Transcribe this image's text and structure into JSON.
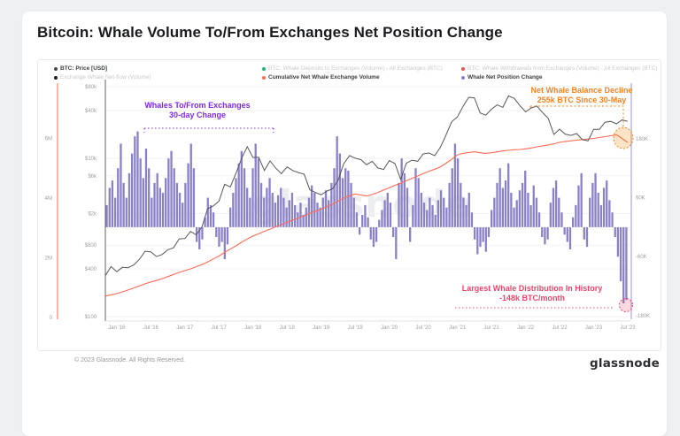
{
  "title": "Bitcoin: Whale Volume To/From Exchanges Net Position Change",
  "watermark": "glassnode",
  "footer": {
    "copyright": "© 2023 Glassnode. All Rights Reserved.",
    "logo": "glassnode"
  },
  "legend": {
    "items": [
      {
        "label": "BTC: Price [USD]",
        "color": "#46484d",
        "active": true
      },
      {
        "label": "Exchange Whale Net-flow (Volume)",
        "color": "#1f2226",
        "active": false
      },
      {
        "label": "BTC: Whale Deposits to Exchanges (Volume) - All Exchanges (BTC)",
        "color": "#1fb56f",
        "active": false
      },
      {
        "label": "Cumulative Net Whale Exchange Volume",
        "color": "#ff6a55",
        "active": true
      },
      {
        "label": "BTC: Whale Withdrawals from Exchanges (Volume) - All Exchanges (BTC)",
        "color": "#e25552",
        "active": false
      },
      {
        "label": "Whale Net Position Change",
        "color": "#8a82c6",
        "active": true
      }
    ]
  },
  "annotations": {
    "whales_change": {
      "line1": "Whales To/From Exchanges",
      "line2": "30-day Change",
      "color": "#7d2ae8"
    },
    "balance_decline": {
      "line1": "Net Whale Balance Decline",
      "line2": "255k BTC Since 30-May",
      "color": "#f6821f"
    },
    "largest_distribution": {
      "line1": "Largest Whale Distribution In History",
      "line2": "-148k BTC/month",
      "color": "#e8476b"
    }
  },
  "chart_data": {
    "type": "combo",
    "title": "Bitcoin: Whale Volume To/From Exchanges Net Position Change",
    "grid": "horizontal-faint",
    "legend_position": "top",
    "x_axis": {
      "start": "2015-11",
      "end": "2023-07",
      "ticks": [
        {
          "label": "Jan '16",
          "m": 2
        },
        {
          "label": "Jul '16",
          "m": 8
        },
        {
          "label": "Jan '17",
          "m": 14
        },
        {
          "label": "Jul '17",
          "m": 20
        },
        {
          "label": "Jan '18",
          "m": 26
        },
        {
          "label": "Jul '18",
          "m": 32
        },
        {
          "label": "Jan '19",
          "m": 38
        },
        {
          "label": "Jul '19",
          "m": 44
        },
        {
          "label": "Jan '20",
          "m": 50
        },
        {
          "label": "Jul '20",
          "m": 56
        },
        {
          "label": "Jan '21",
          "m": 62
        },
        {
          "label": "Jul '21",
          "m": 68
        },
        {
          "label": "Jan '22",
          "m": 74
        },
        {
          "label": "Jul '22",
          "m": 80
        },
        {
          "label": "Jan '23",
          "m": 86
        },
        {
          "label": "Jul '23",
          "m": 92
        }
      ]
    },
    "axes": {
      "price_log_usd": {
        "side": "inner-left",
        "scale": "log",
        "range": [
          100,
          80000
        ],
        "ticks": [
          {
            "label": "$80k",
            "value": 80000
          },
          {
            "label": "$40k",
            "value": 40000
          },
          {
            "label": "$10k",
            "value": 10000
          },
          {
            "label": "$6k",
            "value": 6000
          },
          {
            "label": "$2k",
            "value": 2000
          },
          {
            "label": "$800",
            "value": 800
          },
          {
            "label": "$400",
            "value": 400
          },
          {
            "label": "$100",
            "value": 100
          }
        ]
      },
      "volume_m": {
        "side": "outer-left",
        "scale": "linear",
        "range": [
          0,
          7.8
        ],
        "unit": "M BTC",
        "ticks": [
          {
            "label": "6M",
            "value": 6
          },
          {
            "label": "4M",
            "value": 4
          },
          {
            "label": "2M",
            "value": 2
          },
          {
            "label": "0",
            "value": 0
          }
        ]
      },
      "net_position_k": {
        "side": "right",
        "scale": "linear",
        "range": [
          -192,
          290
        ],
        "unit": "K BTC",
        "ticks": [
          {
            "label": "180K",
            "value": 180
          },
          {
            "label": "60K",
            "value": 60
          },
          {
            "label": "-60K",
            "value": -60
          },
          {
            "label": "-180K",
            "value": -180
          }
        ]
      }
    },
    "series": [
      {
        "name": "BTC: Price [USD]",
        "type": "line",
        "color": "#55575b",
        "axis": "price_log_usd",
        "interval": "monthly",
        "start": "2015-11",
        "values": [
          330,
          430,
          370,
          420,
          415,
          450,
          530,
          670,
          660,
          575,
          610,
          700,
          740,
          960,
          970,
          1190,
          1080,
          1350,
          2300,
          2500,
          2870,
          4700,
          4340,
          6450,
          10000,
          14000,
          10200,
          10300,
          7000,
          9250,
          7500,
          6400,
          7750,
          7000,
          6600,
          6300,
          4000,
          3700,
          3450,
          3850,
          4100,
          5300,
          8550,
          10800,
          10000,
          9600,
          8300,
          9150,
          7550,
          7200,
          9350,
          8550,
          5400,
          8650,
          9450,
          9140,
          11350,
          11650,
          10780,
          13800,
          19700,
          29000,
          33100,
          45200,
          58800,
          57750,
          37300,
          35000,
          41500,
          47100,
          43800,
          61300,
          57000,
          46200,
          38500,
          43200,
          45500,
          37700,
          31800,
          19950,
          23300,
          20050,
          19400,
          20500,
          17150,
          16550,
          23100,
          23150,
          28500,
          29250,
          27200,
          30450,
          29200
        ]
      },
      {
        "name": "Cumulative Net Whale Exchange Volume",
        "type": "line",
        "color": "#ff6a55",
        "axis": "volume_m",
        "interval": "monthly",
        "start": "2015-11",
        "values": [
          0.72,
          0.76,
          0.8,
          0.86,
          0.92,
          0.99,
          1.06,
          1.13,
          1.19,
          1.24,
          1.3,
          1.37,
          1.44,
          1.51,
          1.57,
          1.63,
          1.7,
          1.77,
          1.86,
          1.96,
          2.06,
          2.18,
          2.29,
          2.4,
          2.52,
          2.63,
          2.73,
          2.81,
          2.89,
          2.96,
          3.04,
          3.11,
          3.19,
          3.26,
          3.33,
          3.41,
          3.49,
          3.56,
          3.63,
          3.71,
          3.8,
          3.9,
          4.0,
          4.08,
          4.14,
          4.1,
          4.07,
          4.12,
          4.19,
          4.27,
          4.35,
          4.43,
          4.5,
          4.58,
          4.66,
          4.74,
          4.82,
          4.9,
          4.97,
          5.05,
          5.17,
          5.3,
          5.45,
          5.5,
          5.53,
          5.55,
          5.52,
          5.5,
          5.52,
          5.55,
          5.58,
          5.6,
          5.62,
          5.63,
          5.65,
          5.68,
          5.72,
          5.75,
          5.78,
          5.82,
          5.87,
          5.9,
          5.92,
          5.94,
          5.96,
          5.98,
          6.0,
          6.03,
          6.06,
          6.09,
          6.12,
          6.0,
          5.86
        ]
      },
      {
        "name": "Whale Net Position Change",
        "type": "bar",
        "color": "#8a82c6",
        "axis": "net_position_k",
        "interval": "semi-monthly",
        "start": "2015-11",
        "values": [
          45,
          80,
          95,
          60,
          120,
          170,
          90,
          60,
          110,
          150,
          185,
          195,
          140,
          100,
          160,
          120,
          60,
          90,
          110,
          80,
          70,
          100,
          140,
          155,
          120,
          90,
          70,
          50,
          90,
          130,
          170,
          120,
          -30,
          -45,
          -25,
          20,
          60,
          45,
          30,
          -20,
          -40,
          -30,
          -65,
          -35,
          40,
          70,
          100,
          130,
          155,
          120,
          80,
          60,
          120,
          170,
          140,
          90,
          60,
          80,
          100,
          70,
          50,
          65,
          80,
          60,
          40,
          55,
          70,
          45,
          30,
          50,
          25,
          40,
          60,
          85,
          70,
          50,
          40,
          60,
          75,
          55,
          90,
          120,
          185,
          150,
          100,
          120,
          115,
          90,
          60,
          30,
          -15,
          25,
          45,
          20,
          -25,
          -40,
          -30,
          15,
          35,
          55,
          70,
          50,
          -20,
          -65,
          90,
          140,
          110,
          80,
          -30,
          45,
          120,
          100,
          70,
          50,
          35,
          60,
          45,
          25,
          55,
          75,
          60,
          40,
          90,
          120,
          170,
          140,
          90,
          60,
          45,
          70,
          30,
          -25,
          -55,
          -40,
          -30,
          -50,
          -20,
          35,
          60,
          90,
          120,
          80,
          95,
          130,
          70,
          40,
          55,
          75,
          90,
          115,
          70,
          45,
          85,
          60,
          30,
          -20,
          -35,
          -25,
          50,
          80,
          95,
          60,
          30,
          -15,
          -30,
          -45,
          20,
          45,
          85,
          110,
          -25,
          -40,
          60,
          90,
          110,
          70,
          45,
          80,
          95,
          55,
          30,
          -20,
          -60,
          -110,
          -155,
          -148
        ]
      }
    ]
  }
}
